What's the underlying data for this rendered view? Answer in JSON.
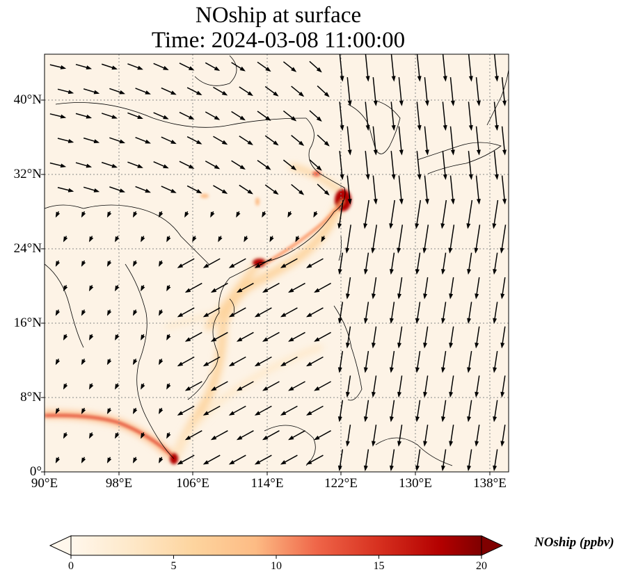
{
  "title": {
    "line1": "NOship at surface",
    "line2": "Time: 2024-03-08 11:00:00"
  },
  "map": {
    "lon_range": [
      90,
      140
    ],
    "lat_range": [
      0,
      45
    ],
    "lon_ticks": [
      "90°E",
      "98°E",
      "106°E",
      "114°E",
      "122°E",
      "130°E",
      "138°E"
    ],
    "lat_ticks": [
      "0°",
      "8°N",
      "16°N",
      "24°N",
      "32°N",
      "40°N"
    ],
    "field_color": "#fdf3e6",
    "gridline_color": "#888888",
    "coastline_color": "#000000",
    "vector_color": "#000000"
  },
  "colorbar": {
    "label": "NOship (ppbv)",
    "min": 0,
    "max": 20,
    "ticks": [
      "0",
      "5",
      "10",
      "15",
      "20"
    ],
    "extend": "both",
    "colormap": "OrRd",
    "colors": [
      "#fff7ec",
      "#fee8c8",
      "#fdd49e",
      "#fdbb84",
      "#fc8d59",
      "#ef6548",
      "#d7301f",
      "#b30000",
      "#7f0000"
    ]
  }
}
